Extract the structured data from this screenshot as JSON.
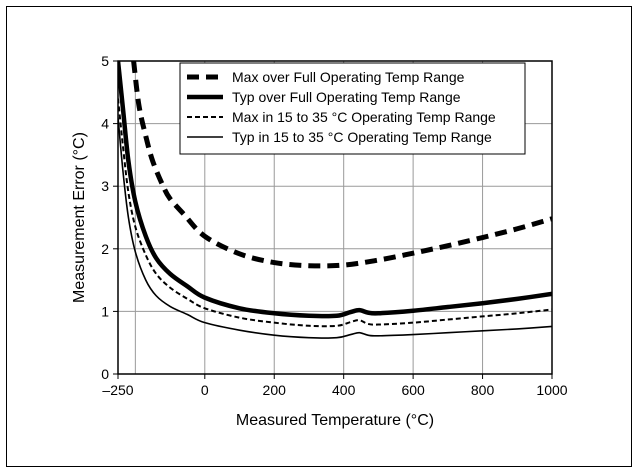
{
  "chart_data": {
    "type": "line",
    "title": "",
    "xlabel": "Measured Temperature (°C)",
    "ylabel": "Measurement Error (°C)",
    "xlim": [
      -250,
      1000
    ],
    "ylim": [
      0,
      5
    ],
    "xticks": [
      -250,
      0,
      200,
      400,
      600,
      800,
      1000
    ],
    "xtick_labels": [
      "–250",
      "0",
      "200",
      "400",
      "600",
      "800",
      "1000"
    ],
    "yticks": [
      0,
      1,
      2,
      3,
      4,
      5
    ],
    "ytick_labels": [
      "0",
      "1",
      "2",
      "3",
      "4",
      "5"
    ],
    "x_gridlines": [
      -250,
      -200,
      0,
      200,
      400,
      600,
      800,
      1000
    ],
    "grid": true,
    "legend_position": "top-right",
    "series": [
      {
        "name": "Max over Full Operating Temp Range",
        "style": "thick-dashed",
        "color": "#000000",
        "points": [
          [
            -205,
            5.0
          ],
          [
            -190,
            4.3
          ],
          [
            -170,
            3.8
          ],
          [
            -150,
            3.4
          ],
          [
            -120,
            3.0
          ],
          [
            -100,
            2.8
          ],
          [
            -60,
            2.55
          ],
          [
            0,
            2.2
          ],
          [
            100,
            1.92
          ],
          [
            200,
            1.78
          ],
          [
            300,
            1.73
          ],
          [
            400,
            1.74
          ],
          [
            500,
            1.82
          ],
          [
            600,
            1.93
          ],
          [
            700,
            2.05
          ],
          [
            800,
            2.18
          ],
          [
            900,
            2.32
          ],
          [
            1000,
            2.48
          ]
        ]
      },
      {
        "name": "Typ over Full Operating Temp Range",
        "style": "thick-solid",
        "color": "#000000",
        "points": [
          [
            -250,
            5.0
          ],
          [
            -235,
            4.2
          ],
          [
            -220,
            3.4
          ],
          [
            -200,
            2.75
          ],
          [
            -170,
            2.2
          ],
          [
            -140,
            1.85
          ],
          [
            -100,
            1.6
          ],
          [
            -50,
            1.4
          ],
          [
            0,
            1.22
          ],
          [
            100,
            1.05
          ],
          [
            200,
            0.97
          ],
          [
            300,
            0.93
          ],
          [
            380,
            0.93
          ],
          [
            420,
            0.99
          ],
          [
            445,
            1.02
          ],
          [
            470,
            0.98
          ],
          [
            500,
            0.97
          ],
          [
            600,
            1.01
          ],
          [
            700,
            1.07
          ],
          [
            800,
            1.13
          ],
          [
            900,
            1.2
          ],
          [
            1000,
            1.28
          ]
        ]
      },
      {
        "name": "Max in 15 to 35 °C Operating Temp Range",
        "style": "thin-dashed",
        "color": "#000000",
        "points": [
          [
            -250,
            4.4
          ],
          [
            -235,
            3.6
          ],
          [
            -220,
            2.9
          ],
          [
            -200,
            2.35
          ],
          [
            -170,
            1.9
          ],
          [
            -140,
            1.6
          ],
          [
            -100,
            1.38
          ],
          [
            -50,
            1.2
          ],
          [
            0,
            1.05
          ],
          [
            100,
            0.9
          ],
          [
            200,
            0.82
          ],
          [
            300,
            0.77
          ],
          [
            380,
            0.77
          ],
          [
            420,
            0.83
          ],
          [
            445,
            0.86
          ],
          [
            470,
            0.8
          ],
          [
            500,
            0.79
          ],
          [
            600,
            0.82
          ],
          [
            700,
            0.87
          ],
          [
            800,
            0.92
          ],
          [
            900,
            0.97
          ],
          [
            1000,
            1.03
          ]
        ]
      },
      {
        "name": "Typ in 15 to 35 °C Operating Temp Range",
        "style": "thin-solid",
        "color": "#000000",
        "points": [
          [
            -250,
            4.1
          ],
          [
            -235,
            3.2
          ],
          [
            -220,
            2.5
          ],
          [
            -200,
            1.95
          ],
          [
            -170,
            1.5
          ],
          [
            -140,
            1.25
          ],
          [
            -100,
            1.08
          ],
          [
            -50,
            0.95
          ],
          [
            0,
            0.82
          ],
          [
            100,
            0.7
          ],
          [
            200,
            0.62
          ],
          [
            300,
            0.58
          ],
          [
            380,
            0.58
          ],
          [
            420,
            0.63
          ],
          [
            445,
            0.66
          ],
          [
            470,
            0.62
          ],
          [
            500,
            0.61
          ],
          [
            600,
            0.63
          ],
          [
            700,
            0.66
          ],
          [
            800,
            0.69
          ],
          [
            900,
            0.72
          ],
          [
            1000,
            0.76
          ]
        ]
      }
    ]
  }
}
